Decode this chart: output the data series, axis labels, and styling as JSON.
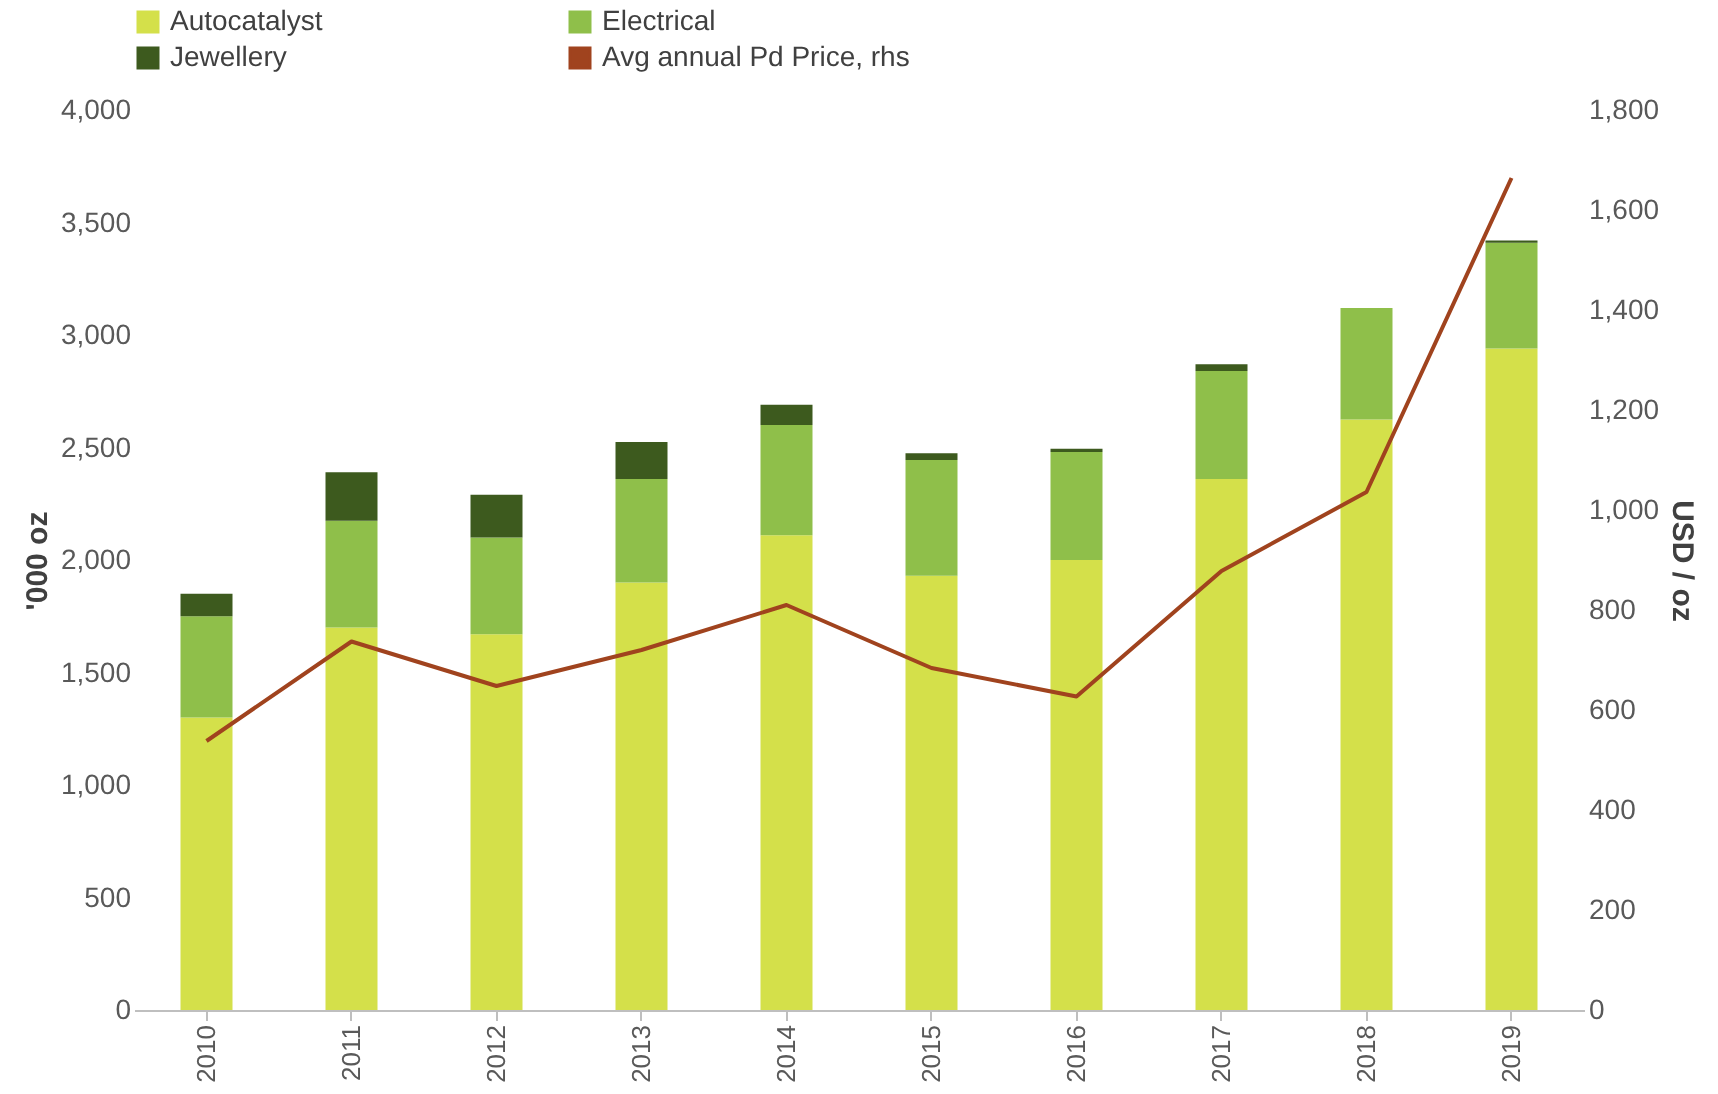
{
  "chart_data": {
    "type": "bar",
    "stacked": true,
    "ylabel": "'000 oz",
    "y2label": "USD / oz",
    "categories": [
      "2010",
      "2011",
      "2012",
      "2013",
      "2014",
      "2015",
      "2016",
      "2017",
      "2018",
      "2019"
    ],
    "series": [
      {
        "name": "Autocatalyst",
        "color": "#d4e04a",
        "values": [
          1300,
          1700,
          1670,
          1900,
          2110,
          1930,
          2000,
          2360,
          2625,
          2940
        ]
      },
      {
        "name": "Electrical",
        "color": "#8fbf4a",
        "values": [
          450,
          475,
          430,
          460,
          490,
          515,
          480,
          480,
          495,
          470
        ]
      },
      {
        "name": "Jewellery",
        "color": "#3d5a1e",
        "values": [
          100,
          215,
          190,
          165,
          90,
          30,
          15,
          30,
          0,
          10
        ]
      },
      {
        "name": "Avg annual Pd Price, rhs",
        "type": "line",
        "axis": "y2",
        "color": "#a0431e",
        "values": [
          538,
          737,
          648,
          720,
          810,
          684,
          627,
          878,
          1036,
          1664
        ]
      }
    ],
    "ylim": [
      0,
      4000
    ],
    "yticks": [
      0,
      {
        "value": 500,
        "label": "500"
      },
      {
        "value": 1000,
        "label": "1,000"
      },
      {
        "value": 1500,
        "label": "1,500"
      },
      {
        "value": 2000,
        "label": "2,000"
      },
      {
        "value": 2500,
        "label": "2,500"
      },
      {
        "value": 3000,
        "label": "3,000"
      },
      {
        "value": 3500,
        "label": "3,500"
      },
      {
        "value": 4000,
        "label": "4,000"
      }
    ],
    "y2lim": [
      0,
      1800
    ],
    "y2ticks": [
      0,
      200,
      400,
      600,
      800,
      {
        "value": 1000,
        "label": "1,000"
      },
      {
        "value": 1200,
        "label": "1,200"
      },
      {
        "value": 1400,
        "label": "1,400"
      },
      {
        "value": 1600,
        "label": "1,600"
      },
      {
        "value": 1800,
        "label": "1,800"
      }
    ],
    "grid": false,
    "legend": "top",
    "marker": "none",
    "line_style": "solid"
  }
}
